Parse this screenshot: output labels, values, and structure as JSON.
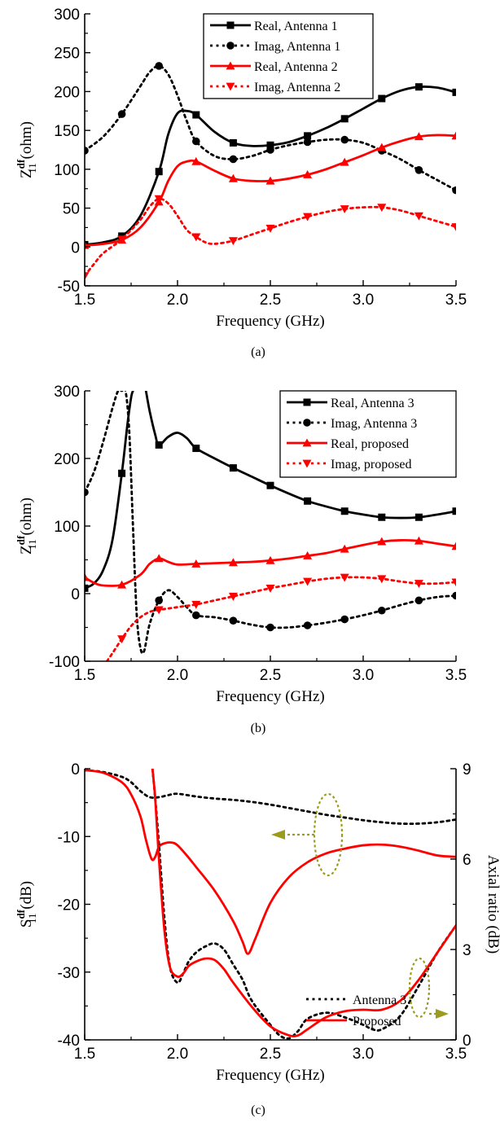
{
  "chart_data": [
    {
      "type": "line",
      "panel_label": "(a)",
      "xlabel": "Frequency (GHz)",
      "ylabel": {
        "main": "Z",
        "sup": "df",
        "sub": "11",
        "unit": " (ohm)"
      },
      "xlim": [
        1.5,
        3.5
      ],
      "ylim": [
        -50,
        300
      ],
      "xticks": [
        "1.5",
        "2.0",
        "2.5",
        "3.0",
        "3.5"
      ],
      "yticks": [
        "-50",
        "0",
        "50",
        "100",
        "150",
        "200",
        "250",
        "300"
      ],
      "legend_position": "top-right",
      "series": [
        {
          "name": "Real, Antenna 1",
          "color": "#000000",
          "dash": "solid",
          "marker": "square",
          "x": [
            1.5,
            1.6,
            1.7,
            1.8,
            1.9,
            1.95,
            2.0,
            2.05,
            2.1,
            2.2,
            2.3,
            2.4,
            2.5,
            2.6,
            2.7,
            2.8,
            2.9,
            3.0,
            3.1,
            3.2,
            3.3,
            3.4,
            3.5
          ],
          "y": [
            3,
            6,
            14,
            40,
            97,
            145,
            172,
            175,
            170,
            148,
            134,
            130,
            131,
            135,
            143,
            153,
            165,
            178,
            191,
            201,
            206,
            205,
            199
          ],
          "marker_x": [
            1.5,
            1.7,
            1.9,
            2.1,
            2.3,
            2.5,
            2.7,
            2.9,
            3.1,
            3.3,
            3.5
          ]
        },
        {
          "name": "Imag, Antenna 1",
          "color": "#000000",
          "dash": "dot",
          "marker": "circle",
          "x": [
            1.5,
            1.6,
            1.7,
            1.8,
            1.85,
            1.9,
            1.95,
            2.0,
            2.05,
            2.1,
            2.2,
            2.3,
            2.4,
            2.5,
            2.6,
            2.7,
            2.8,
            2.9,
            3.0,
            3.1,
            3.2,
            3.3,
            3.4,
            3.5
          ],
          "y": [
            124,
            142,
            171,
            207,
            225,
            233,
            222,
            195,
            162,
            136,
            117,
            113,
            117,
            125,
            131,
            135,
            138,
            138,
            134,
            124,
            113,
            99,
            86,
            73
          ],
          "marker_x": [
            1.5,
            1.7,
            1.9,
            2.1,
            2.3,
            2.5,
            2.7,
            2.9,
            3.1,
            3.3,
            3.5
          ]
        },
        {
          "name": "Real, Antenna 2",
          "color": "#ff0000",
          "dash": "solid",
          "marker": "triangle-up",
          "x": [
            1.5,
            1.6,
            1.7,
            1.8,
            1.9,
            1.95,
            2.0,
            2.05,
            2.1,
            2.2,
            2.3,
            2.4,
            2.5,
            2.6,
            2.7,
            2.8,
            2.9,
            3.0,
            3.1,
            3.2,
            3.3,
            3.4,
            3.5
          ],
          "y": [
            2,
            4,
            9,
            25,
            58,
            85,
            104,
            110,
            110,
            98,
            88,
            85,
            85,
            88,
            93,
            100,
            109,
            118,
            128,
            136,
            142,
            144,
            143
          ],
          "marker_x": [
            1.5,
            1.7,
            1.9,
            2.1,
            2.3,
            2.5,
            2.7,
            2.9,
            3.1,
            3.3,
            3.5
          ]
        },
        {
          "name": "Imag, Antenna 2",
          "color": "#ff0000",
          "dash": "dot",
          "marker": "triangle-down",
          "x": [
            1.5,
            1.55,
            1.6,
            1.7,
            1.8,
            1.85,
            1.9,
            1.95,
            2.0,
            2.05,
            2.1,
            2.15,
            2.2,
            2.3,
            2.4,
            2.5,
            2.6,
            2.7,
            2.8,
            2.9,
            3.0,
            3.1,
            3.2,
            3.3,
            3.4,
            3.5
          ],
          "y": [
            -37,
            -22,
            -8,
            10,
            35,
            52,
            62,
            56,
            40,
            22,
            13,
            6,
            4,
            8,
            16,
            24,
            32,
            39,
            45,
            49,
            51,
            51,
            47,
            40,
            33,
            26
          ],
          "marker_x": [
            1.5,
            1.7,
            1.9,
            2.1,
            2.3,
            2.5,
            2.7,
            2.9,
            3.1,
            3.3,
            3.5
          ]
        }
      ]
    },
    {
      "type": "line",
      "panel_label": "(b)",
      "xlabel": "Frequency (GHz)",
      "ylabel": {
        "main": "Z",
        "sup": "df",
        "sub": "11",
        "unit": " (ohm)"
      },
      "xlim": [
        1.5,
        3.5
      ],
      "ylim": [
        -100,
        300
      ],
      "xticks": [
        "1.5",
        "2.0",
        "2.5",
        "3.0",
        "3.5"
      ],
      "yticks": [
        "-100",
        "0",
        "100",
        "200",
        "300"
      ],
      "legend_position": "top-right",
      "series": [
        {
          "name": "Real, Antenna 3",
          "color": "#000000",
          "dash": "solid",
          "marker": "square",
          "x": [
            1.5,
            1.55,
            1.6,
            1.65,
            1.7,
            1.73,
            1.75,
            1.76,
            null,
            1.83,
            1.85,
            1.88,
            1.9,
            1.95,
            2.0,
            2.05,
            2.1,
            2.2,
            2.3,
            2.4,
            2.5,
            2.6,
            2.7,
            2.8,
            2.9,
            3.0,
            3.1,
            3.2,
            3.3,
            3.4,
            3.5
          ],
          "y": [
            8,
            15,
            35,
            80,
            178,
            250,
            290,
            300,
            null,
            300,
            270,
            235,
            220,
            232,
            238,
            230,
            215,
            200,
            186,
            173,
            160,
            148,
            137,
            129,
            122,
            117,
            113,
            112,
            113,
            117,
            122
          ],
          "marker_x": [
            1.5,
            1.7,
            1.9,
            2.1,
            2.3,
            2.5,
            2.7,
            2.9,
            3.1,
            3.3,
            3.5
          ]
        },
        {
          "name": "Imag, Antenna 3",
          "color": "#000000",
          "dash": "dot",
          "marker": "circle",
          "x": [
            1.5,
            1.55,
            1.6,
            1.65,
            1.68,
            1.7,
            1.72,
            1.74,
            1.76,
            1.78,
            1.8,
            1.82,
            1.85,
            1.9,
            1.95,
            2.0,
            2.05,
            2.1,
            2.2,
            2.3,
            2.4,
            2.5,
            2.6,
            2.7,
            2.8,
            2.9,
            3.0,
            3.1,
            3.2,
            3.3,
            3.4,
            3.5
          ],
          "y": [
            150,
            180,
            225,
            275,
            300,
            300,
            300,
            240,
            100,
            -30,
            -80,
            -85,
            -45,
            -10,
            5,
            -5,
            -20,
            -32,
            -35,
            -40,
            -46,
            -50,
            -50,
            -47,
            -43,
            -38,
            -32,
            -25,
            -17,
            -10,
            -5,
            -3
          ],
          "marker_x": [
            1.5,
            1.9,
            2.1,
            2.3,
            2.5,
            2.7,
            2.9,
            3.1,
            3.3,
            3.5
          ]
        },
        {
          "name": "Real, proposed",
          "color": "#ff0000",
          "dash": "solid",
          "marker": "triangle-up",
          "x": [
            1.5,
            1.55,
            1.6,
            1.7,
            1.8,
            1.85,
            1.9,
            1.95,
            2.0,
            2.1,
            2.2,
            2.3,
            2.4,
            2.5,
            2.6,
            2.7,
            2.8,
            2.9,
            3.0,
            3.1,
            3.2,
            3.3,
            3.4,
            3.5
          ],
          "y": [
            24,
            16,
            12,
            13,
            28,
            44,
            52,
            47,
            43,
            44,
            45,
            46,
            47,
            49,
            52,
            56,
            60,
            66,
            72,
            77,
            79,
            78,
            74,
            70
          ],
          "marker_x": [
            1.5,
            1.7,
            1.9,
            2.1,
            2.3,
            2.5,
            2.7,
            2.9,
            3.1,
            3.3,
            3.5
          ]
        },
        {
          "name": "Imag, proposed",
          "color": "#ff0000",
          "dash": "dot",
          "marker": "triangle-down",
          "x": [
            1.62,
            1.65,
            1.7,
            1.75,
            1.8,
            1.85,
            1.9,
            1.95,
            2.0,
            2.1,
            2.2,
            2.3,
            2.4,
            2.5,
            2.6,
            2.7,
            2.8,
            2.9,
            3.0,
            3.1,
            3.2,
            3.3,
            3.4,
            3.5
          ],
          "y": [
            -100,
            -88,
            -67,
            -48,
            -35,
            -27,
            -24,
            -22,
            -20,
            -16,
            -10,
            -4,
            2,
            8,
            13,
            18,
            22,
            24,
            24,
            22,
            18,
            15,
            15,
            17
          ],
          "marker_x": [
            1.7,
            1.9,
            2.1,
            2.3,
            2.5,
            2.7,
            2.9,
            3.1,
            3.3,
            3.5
          ]
        }
      ]
    },
    {
      "type": "line",
      "panel_label": "(c)",
      "xlabel": "Frequency (GHz)",
      "ylabel": {
        "main": "S",
        "sup": "df",
        "sub": "11",
        "unit": " (dB)"
      },
      "ylabel_right": "Axial ratio (dB)",
      "xlim": [
        1.5,
        3.5
      ],
      "ylim": [
        -40,
        0
      ],
      "ylim_right": [
        0,
        9
      ],
      "xticks": [
        "1.5",
        "2.0",
        "2.5",
        "3.0",
        "3.5"
      ],
      "yticks": [
        "0",
        "-10",
        "-20",
        "-30",
        "-40"
      ],
      "yticks_right": [
        "9",
        "6",
        "3",
        "0"
      ],
      "legend_position": "center-right",
      "legend": [
        {
          "name": "Antenna 3",
          "color": "#000000",
          "dash": "dot"
        },
        {
          "name": "Proposed",
          "color": "#ff0000",
          "dash": "solid"
        }
      ],
      "series": [
        {
          "label": "Antenna 3 S11",
          "axis": "left",
          "color": "#000000",
          "dash": "dot",
          "x": [
            1.5,
            1.6,
            1.7,
            1.75,
            1.8,
            1.85,
            1.9,
            1.95,
            2.0,
            2.1,
            2.2,
            2.3,
            2.4,
            2.5,
            2.6,
            2.7,
            2.8,
            2.9,
            3.0,
            3.1,
            3.2,
            3.3,
            3.4,
            3.5
          ],
          "y": [
            -0.2,
            -0.5,
            -1.2,
            -2.0,
            -3.3,
            -4.2,
            -4.2,
            -3.9,
            -3.7,
            -4.1,
            -4.4,
            -4.6,
            -4.9,
            -5.3,
            -5.8,
            -6.3,
            -6.8,
            -7.2,
            -7.6,
            -7.9,
            -8.1,
            -8.1,
            -7.9,
            -7.5
          ]
        },
        {
          "label": "Proposed S11",
          "axis": "left",
          "color": "#ff0000",
          "dash": "solid",
          "x": [
            1.5,
            1.6,
            1.7,
            1.75,
            1.8,
            1.83,
            1.86,
            1.88,
            1.9,
            1.93,
            1.97,
            2.0,
            2.05,
            2.1,
            2.2,
            2.3,
            2.35,
            2.38,
            2.42,
            2.5,
            2.6,
            2.7,
            2.8,
            2.9,
            3.0,
            3.1,
            3.2,
            3.3,
            3.4,
            3.5
          ],
          "y": [
            -0.2,
            -0.6,
            -2.0,
            -3.8,
            -7.0,
            -10.5,
            -13.3,
            -13.0,
            -11.5,
            -11.0,
            -10.9,
            -11.3,
            -12.8,
            -14.5,
            -18.0,
            -22.5,
            -25.5,
            -27.3,
            -25.0,
            -19.8,
            -16.0,
            -13.8,
            -12.5,
            -11.8,
            -11.3,
            -11.2,
            -11.5,
            -12.1,
            -12.8,
            -13.0
          ]
        },
        {
          "label": "Antenna 3 AR",
          "axis": "right",
          "color": "#000000",
          "dash": "dot",
          "x": [
            1.865,
            1.88,
            1.9,
            1.93,
            1.96,
            2.0,
            2.03,
            2.06,
            2.1,
            2.15,
            2.2,
            2.25,
            2.3,
            2.35,
            2.4,
            2.5,
            2.55,
            2.6,
            2.65,
            2.7,
            2.8,
            2.9,
            3.0,
            3.05,
            3.1,
            3.2,
            3.3,
            3.4,
            3.5
          ],
          "y": [
            9.0,
            8.0,
            6.5,
            4.0,
            2.4,
            1.9,
            2.2,
            2.6,
            2.9,
            3.1,
            3.2,
            3.0,
            2.5,
            2.0,
            1.3,
            0.5,
            0.15,
            0.05,
            0.3,
            0.7,
            0.9,
            0.75,
            0.5,
            0.35,
            0.35,
            0.8,
            1.8,
            2.9,
            3.8
          ]
        },
        {
          "label": "Proposed AR",
          "axis": "right",
          "color": "#ff0000",
          "dash": "solid",
          "x": [
            1.865,
            1.88,
            1.9,
            1.93,
            1.96,
            2.0,
            2.03,
            2.06,
            2.1,
            2.15,
            2.2,
            2.25,
            2.3,
            2.4,
            2.5,
            2.6,
            2.65,
            2.7,
            2.8,
            2.9,
            3.0,
            3.1,
            3.2,
            3.3,
            3.4,
            3.5
          ],
          "y": [
            9.0,
            8.0,
            6.0,
            3.6,
            2.4,
            2.1,
            2.2,
            2.45,
            2.6,
            2.7,
            2.65,
            2.35,
            1.9,
            1.1,
            0.45,
            0.15,
            0.15,
            0.35,
            0.75,
            0.95,
            1.0,
            1.0,
            1.3,
            2.0,
            2.9,
            3.8
          ]
        }
      ]
    }
  ]
}
